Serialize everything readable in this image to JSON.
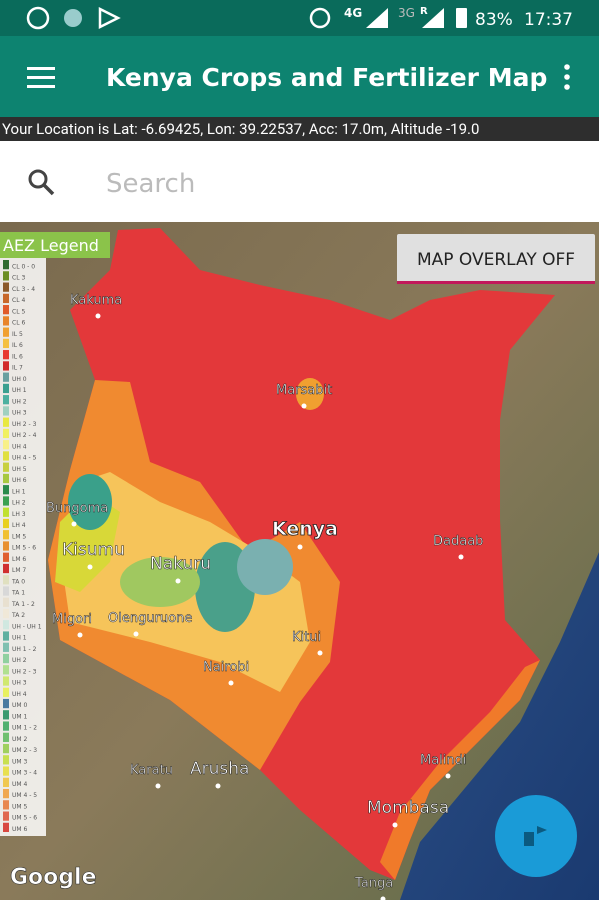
{
  "status_bar": {
    "network_1": "4G",
    "network_2": "3G",
    "roaming": "R",
    "battery": "83%",
    "time": "17:37"
  },
  "app_bar": {
    "title": "Kenya Crops and Fertilizer Map"
  },
  "location_bar": {
    "text": "Your Location is Lat: -6.69425, Lon: 39.22537, Acc: 17.0m, Altitude -19.0"
  },
  "search": {
    "placeholder": "Search"
  },
  "map": {
    "overlay_button": "MAP OVERLAY OFF",
    "attribution": "Google",
    "legend": {
      "title": "AEZ Legend",
      "items": [
        {
          "label": "CL 0 - 0",
          "color": "#2f6b2f"
        },
        {
          "label": "CL 3",
          "color": "#6b8e23"
        },
        {
          "label": "CL 3 - 4",
          "color": "#8b5a2b"
        },
        {
          "label": "CL 4",
          "color": "#c8682a"
        },
        {
          "label": "CL 5",
          "color": "#e05a2a"
        },
        {
          "label": "CL 6",
          "color": "#e8842a"
        },
        {
          "label": "IL 5",
          "color": "#f0a030"
        },
        {
          "label": "IL 6",
          "color": "#f4c040"
        },
        {
          "label": "IL 6",
          "color": "#e83a30"
        },
        {
          "label": "IL 7",
          "color": "#d22a2a"
        },
        {
          "label": "UH 0",
          "color": "#6aa0a0"
        },
        {
          "label": "UH 1",
          "color": "#3aa090"
        },
        {
          "label": "UH 2",
          "color": "#4cb0a0"
        },
        {
          "label": "UH 3",
          "color": "#a0d0c0"
        },
        {
          "label": "UH 2 - 3",
          "color": "#e8e840"
        },
        {
          "label": "UH 2 - 4",
          "color": "#f0f060"
        },
        {
          "label": "UH 4",
          "color": "#f8f088"
        },
        {
          "label": "UH 4 - 5",
          "color": "#e0e040"
        },
        {
          "label": "UH 5",
          "color": "#c8d040"
        },
        {
          "label": "UH 6",
          "color": "#a8c840"
        },
        {
          "label": "LH 1",
          "color": "#2a8a4a"
        },
        {
          "label": "LH 2",
          "color": "#3aa050"
        },
        {
          "label": "LH 3",
          "color": "#c0e030"
        },
        {
          "label": "LH 4",
          "color": "#e8d020"
        },
        {
          "label": "LM 5",
          "color": "#f0c030"
        },
        {
          "label": "LM 5 - 6",
          "color": "#e89030"
        },
        {
          "label": "LM 6",
          "color": "#e06030"
        },
        {
          "label": "LM 7",
          "color": "#d03030"
        },
        {
          "label": "TA 0",
          "color": "#e0e0c0"
        },
        {
          "label": "TA 1",
          "color": "#d8d8d8"
        },
        {
          "label": "TA 1 - 2",
          "color": "#e8e0d0"
        },
        {
          "label": "TA 2",
          "color": "#f0e8d8"
        },
        {
          "label": "UH - UH 1",
          "color": "#d0e8e0"
        },
        {
          "label": "UH 1",
          "color": "#60b0a0"
        },
        {
          "label": "UH 1 - 2",
          "color": "#80c0b0"
        },
        {
          "label": "UH 2",
          "color": "#90d0a0"
        },
        {
          "label": "UH 2 - 3",
          "color": "#b0e090"
        },
        {
          "label": "UH 3",
          "color": "#d0e870"
        },
        {
          "label": "UH 4",
          "color": "#e8f060"
        },
        {
          "label": "UM 0",
          "color": "#4a7aa0"
        },
        {
          "label": "UM 1",
          "color": "#3a9a70"
        },
        {
          "label": "UM 1 - 2",
          "color": "#50b070"
        },
        {
          "label": "UM 2",
          "color": "#70c070"
        },
        {
          "label": "UM 2 - 3",
          "color": "#a0d060"
        },
        {
          "label": "UM 3",
          "color": "#c8e050"
        },
        {
          "label": "UM 3 - 4",
          "color": "#e8e050"
        },
        {
          "label": "UM 4",
          "color": "#f0c850"
        },
        {
          "label": "UM 4 - 5",
          "color": "#f0a850"
        },
        {
          "label": "UM 5",
          "color": "#e88850"
        },
        {
          "label": "UM 5 - 6",
          "color": "#e06850"
        },
        {
          "label": "UM 6",
          "color": "#d84840"
        }
      ]
    },
    "places": [
      "Kakuma",
      "Marsabit",
      "Bungoma",
      "Kisumu",
      "Nakuru",
      "Kenya",
      "Dadaab",
      "Migori",
      "Olenguruone",
      "Kitui",
      "Nairobi",
      "Karatu",
      "Arusha",
      "Malindi",
      "Mombasa",
      "Tanga"
    ]
  }
}
